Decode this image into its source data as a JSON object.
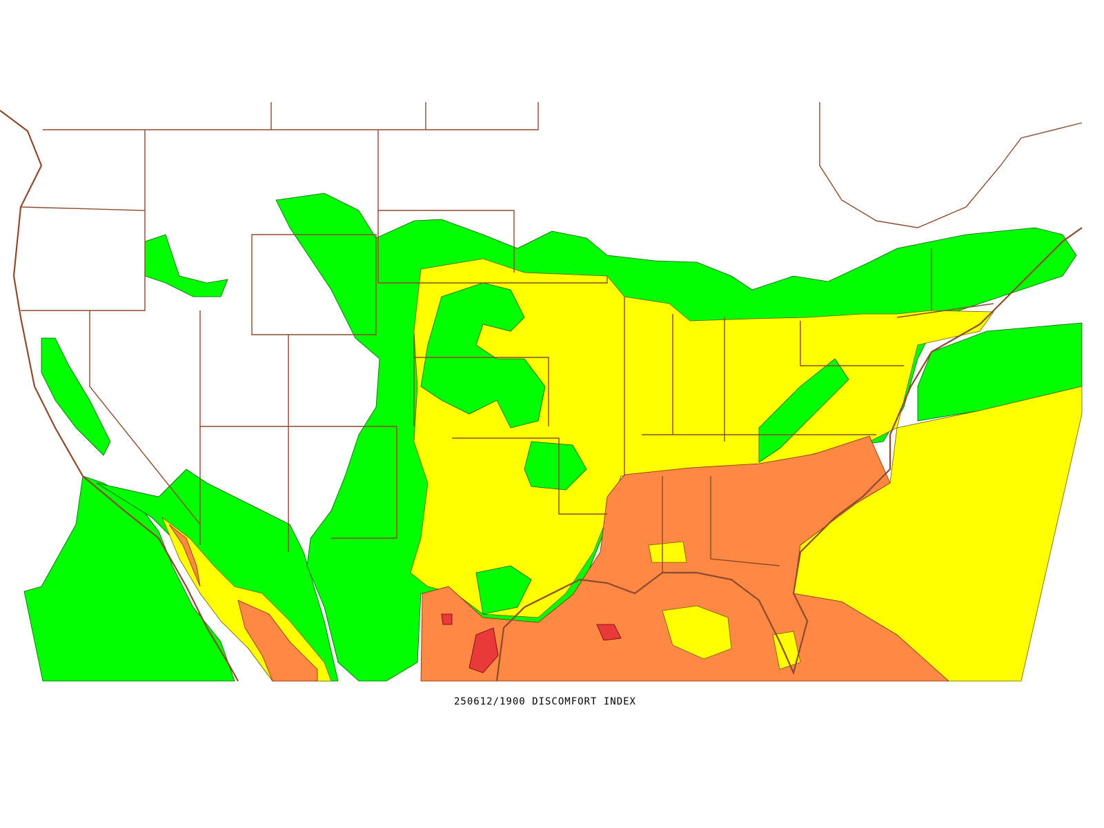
{
  "caption": "250612/1900 DISCOMFORT INDEX"
}
